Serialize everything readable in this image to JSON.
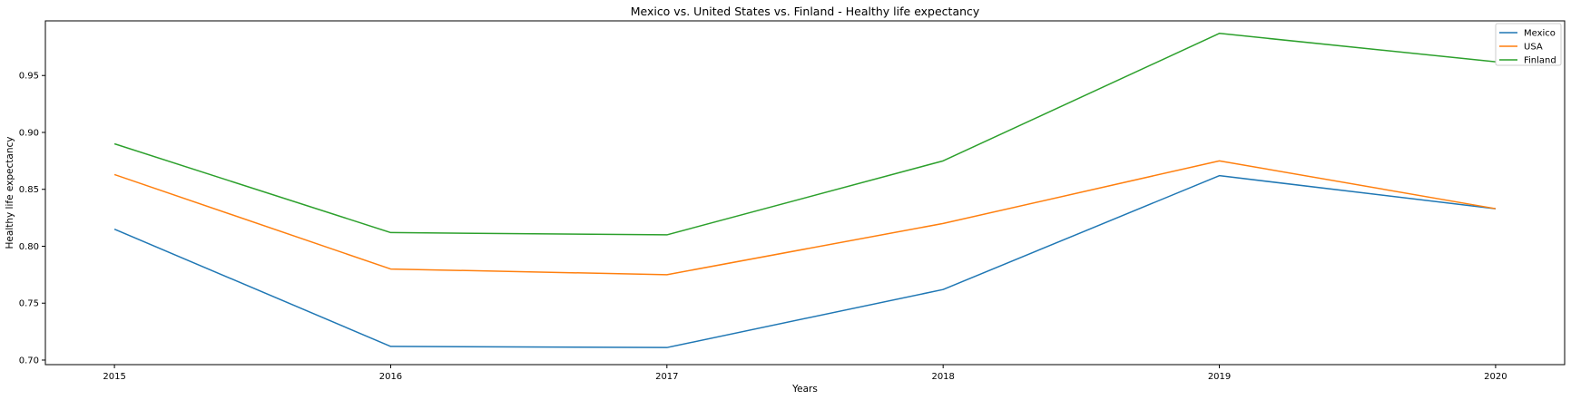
{
  "chart_data": {
    "type": "line",
    "title": "Mexico vs. United States vs. Finland - Healthy life expectancy",
    "xlabel": "Years",
    "ylabel": "Healthy life expectancy",
    "x": [
      "2015",
      "2016",
      "2017",
      "2018",
      "2019",
      "2020"
    ],
    "xlim": [
      2014.75,
      2020.25
    ],
    "ylim": [
      0.696,
      0.998
    ],
    "yticks": [
      "0.70",
      "0.75",
      "0.80",
      "0.85",
      "0.90",
      "0.95"
    ],
    "grid": false,
    "legend_position": "top-right",
    "series": [
      {
        "name": "Mexico",
        "color": "#1f77b4",
        "values": [
          0.815,
          0.712,
          0.711,
          0.762,
          0.862,
          0.833
        ]
      },
      {
        "name": "USA",
        "color": "#ff7f0e",
        "values": [
          0.863,
          0.78,
          0.775,
          0.82,
          0.875,
          0.833
        ]
      },
      {
        "name": "Finland",
        "color": "#2ca02c",
        "values": [
          0.89,
          0.812,
          0.81,
          0.875,
          0.987,
          0.962
        ]
      }
    ]
  }
}
